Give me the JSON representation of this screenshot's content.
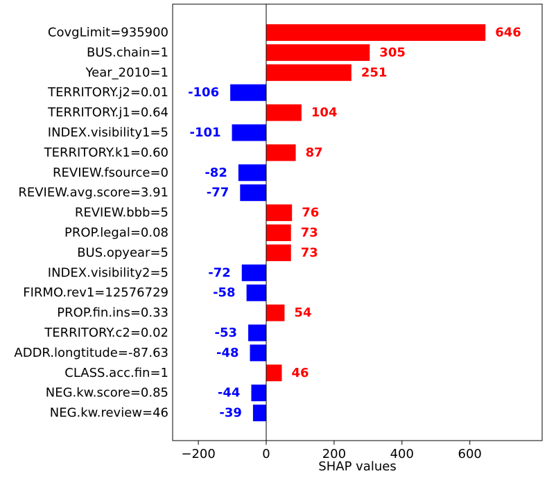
{
  "chart_data": {
    "type": "bar",
    "orientation": "horizontal",
    "xlabel": "SHAP values",
    "ylabel": "",
    "title": "",
    "xlim": [
      -275,
      810
    ],
    "xticks": [
      -200,
      0,
      200,
      400,
      600
    ],
    "xtick_labels": [
      "−200",
      "0",
      "200",
      "400",
      "600"
    ],
    "grid": false,
    "colors": {
      "positive": "#ff0000",
      "negative": "#0000ff"
    },
    "categories": [
      "CovgLimit=935900",
      "BUS.chain=1",
      "Year_2010=1",
      "TERRITORY.j2=0.01",
      "TERRITORY.j1=0.64",
      "INDEX.visibility1=5",
      "TERRITORY.k1=0.60",
      "REVIEW.fsource=0",
      "REVIEW.avg.score=3.91",
      "REVIEW.bbb=5",
      "PROP.legal=0.08",
      "BUS.opyear=5",
      "INDEX.visibility2=5",
      "FIRMO.rev1=12576729",
      "PROP.fin.ins=0.33",
      "TERRITORY.c2=0.02",
      "ADDR.longtitude=-87.63",
      "CLASS.acc.fin=1",
      "NEG.kw.score=0.85",
      "NEG.kw.review=46"
    ],
    "values": [
      646,
      305,
      251,
      -106,
      104,
      -101,
      87,
      -82,
      -77,
      76,
      73,
      73,
      -72,
      -58,
      54,
      -53,
      -48,
      46,
      -44,
      -39
    ],
    "value_labels": [
      "646",
      "305",
      "251",
      "-106",
      "104",
      "-101",
      "87",
      "-82",
      "-77",
      "76",
      "73",
      "73",
      "-72",
      "-58",
      "54",
      "-53",
      "-48",
      "46",
      "-44",
      "-39"
    ]
  }
}
